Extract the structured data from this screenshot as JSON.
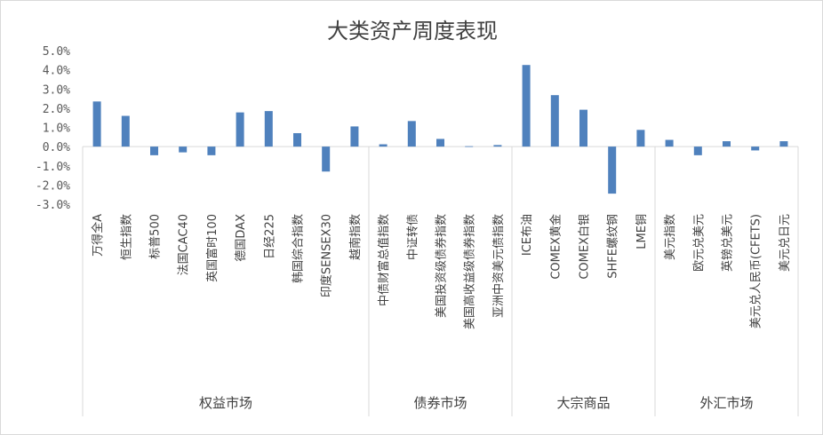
{
  "chart_data": {
    "type": "bar",
    "title": "大类资产周度表现",
    "ylim": [
      -3.0,
      5.0
    ],
    "yticks": [
      "5.0%",
      "4.0%",
      "3.0%",
      "2.0%",
      "1.0%",
      "0.0%",
      "-1.0%",
      "-2.0%",
      "-3.0%"
    ],
    "ytick_values": [
      5,
      4,
      3,
      2,
      1,
      0,
      -1,
      -2,
      -3
    ],
    "grid": false,
    "bar_color": "#4f81bd",
    "categories": [
      "万得全A",
      "恒生指数",
      "标普500",
      "法国CAC40",
      "英国富时100",
      "德国DAX",
      "日经225",
      "韩国综合指数",
      "印度SENSEX30",
      "越南指数",
      "中债财富总值指数",
      "中证转债",
      "美国投资级债券指数",
      "美国高收益级债券指数",
      "亚洲中资美元债指数",
      "ICE布油",
      "COMEX黄金",
      "COMEX白银",
      "SHFE螺纹钢",
      "LME铜",
      "美元指数",
      "欧元兑美元",
      "英镑兑美元",
      "美元兑人民币(CFETS)",
      "美元兑日元"
    ],
    "values": [
      2.35,
      1.6,
      -0.45,
      -0.3,
      -0.45,
      1.78,
      1.85,
      0.7,
      -1.3,
      1.05,
      0.12,
      1.33,
      0.4,
      0.02,
      0.08,
      4.25,
      2.68,
      1.92,
      -2.45,
      0.87,
      0.35,
      -0.45,
      0.28,
      -0.2,
      0.28
    ],
    "groups": [
      {
        "label": "权益市场",
        "count": 10
      },
      {
        "label": "债券市场",
        "count": 5
      },
      {
        "label": "大宗商品",
        "count": 5
      },
      {
        "label": "外汇市场",
        "count": 5
      }
    ]
  }
}
